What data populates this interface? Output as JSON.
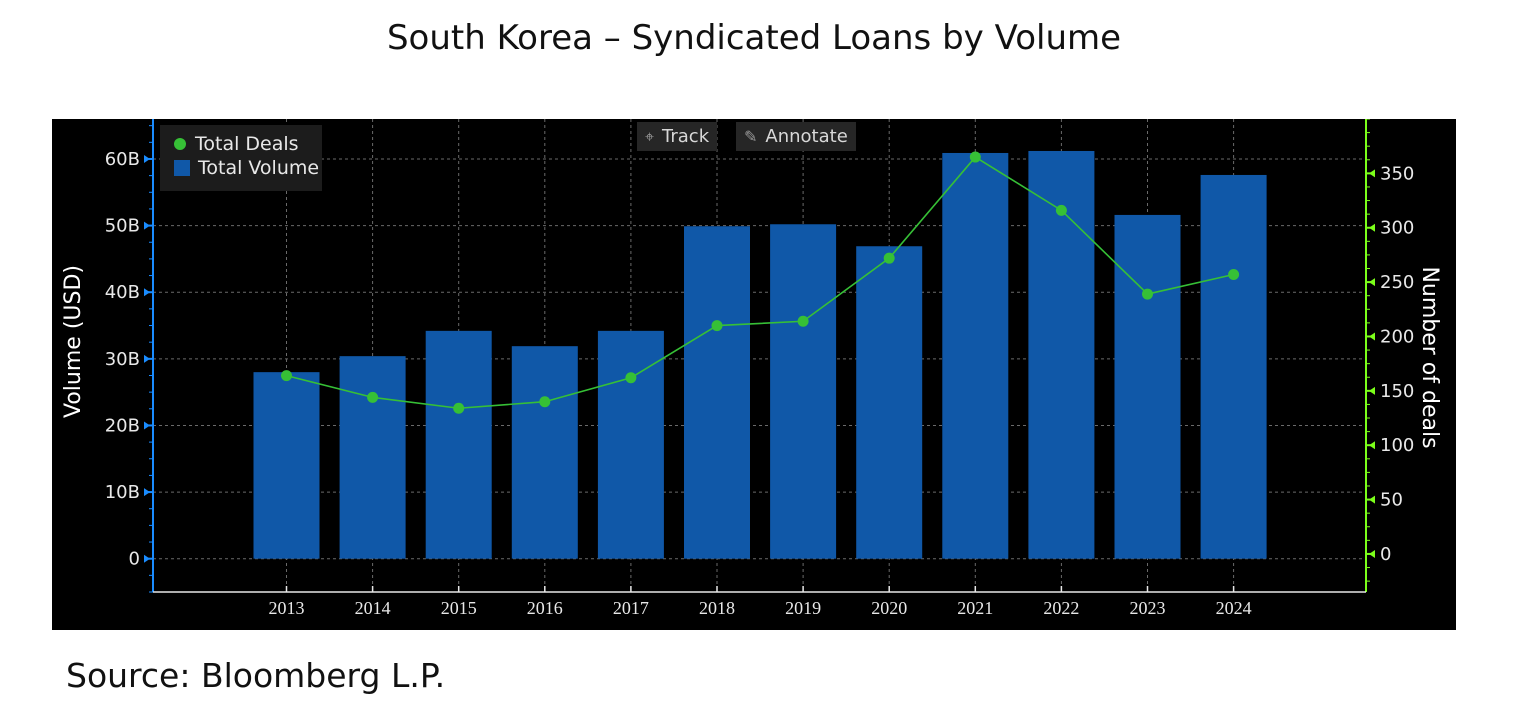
{
  "title": "South Korea – Syndicated Loans by Volume",
  "source": "Source: Bloomberg L.P.",
  "toolbar": {
    "track_label": "Track",
    "track_icon": "crosshair-icon",
    "annotate_label": "Annotate",
    "annotate_icon": "pencil-icon"
  },
  "legend": {
    "deals_label": "Total Deals",
    "volume_label": "Total Volume"
  },
  "colors": {
    "bar": "#1058a8",
    "line": "#36c036",
    "left_axis": "#1a8cff",
    "right_axis": "#7cff1a",
    "grid": "#6a6a6a",
    "background": "#000000"
  },
  "chart_data": {
    "type": "bar",
    "title": "South Korea – Syndicated Loans by Volume",
    "categories": [
      "2013",
      "2014",
      "2015",
      "2016",
      "2017",
      "2018",
      "2019",
      "2020",
      "2021",
      "2022",
      "2023",
      "2024"
    ],
    "series": [
      {
        "name": "Total Volume",
        "type": "bar",
        "axis": "left",
        "unit": "B USD",
        "values": [
          28.0,
          30.4,
          34.2,
          31.9,
          34.2,
          49.9,
          50.2,
          46.9,
          60.9,
          61.2,
          51.6,
          57.6
        ]
      },
      {
        "name": "Total Deals",
        "type": "line",
        "axis": "right",
        "values": [
          164,
          144,
          134,
          140,
          162,
          210,
          214,
          272,
          365,
          316,
          239,
          257
        ]
      }
    ],
    "ylabel": "Volume (USD)",
    "ylabel_right": "Number of deals",
    "ylim": [
      -5,
      66
    ],
    "ylim_right": [
      -35,
      400
    ],
    "yticks": [
      0,
      10,
      20,
      30,
      40,
      50,
      60
    ],
    "ytick_labels": [
      "0",
      "10B",
      "20B",
      "30B",
      "40B",
      "50B",
      "60B"
    ],
    "yticks_right": [
      0,
      50,
      100,
      150,
      200,
      250,
      300,
      350
    ],
    "ytick_labels_right": [
      "0",
      "50",
      "100",
      "150",
      "200",
      "250",
      "300",
      "350"
    ],
    "grid": true,
    "legend_position": "top-left"
  }
}
